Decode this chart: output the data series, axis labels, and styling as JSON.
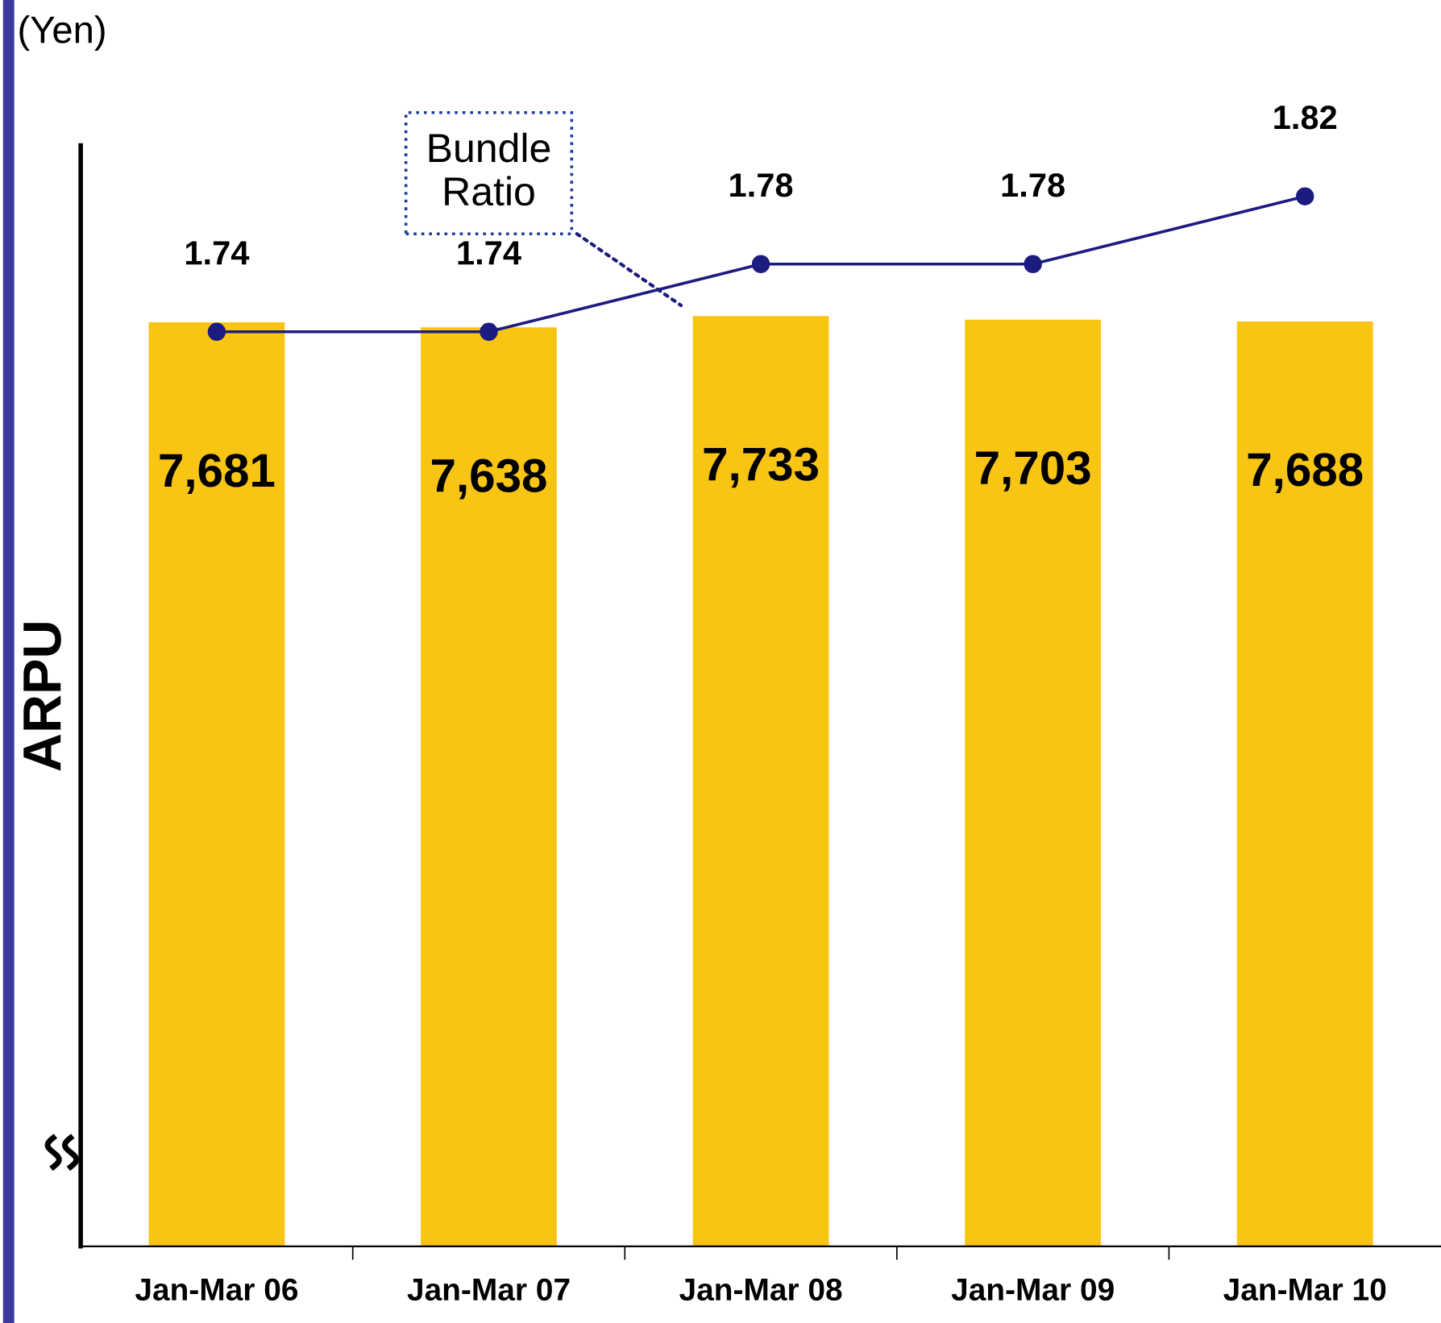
{
  "chart_data": {
    "type": "bar",
    "ylabel": "ARPU",
    "categories": [
      "Jan-Mar 06",
      "Jan-Mar 07",
      "Jan-Mar 08",
      "Jan-Mar 09",
      "Jan-Mar 10"
    ],
    "series": [
      {
        "color": "#f9c514",
        "values": [
          7681,
          7638,
          7733,
          7703,
          7688
        ],
        "value_labels": [
          "7,681",
          "7,638",
          "7,733",
          "7,703",
          "7,688"
        ]
      },
      {
        "type": "line",
        "axis": "y2",
        "color": "#1c1c80",
        "values": [
          1.74,
          1.74,
          1.78,
          1.78,
          1.82
        ]
      }
    ],
    "ylim": [
      0,
      9150
    ],
    "y2lim": [
      1.2,
      1.85
    ],
    "annotations": [
      "(Yen)",
      "Bundle Ratio"
    ],
    "data_labels": true,
    "marker": "circle",
    "line_style": "solid",
    "tick_labels": "x",
    "grid": false,
    "legend": false
  }
}
